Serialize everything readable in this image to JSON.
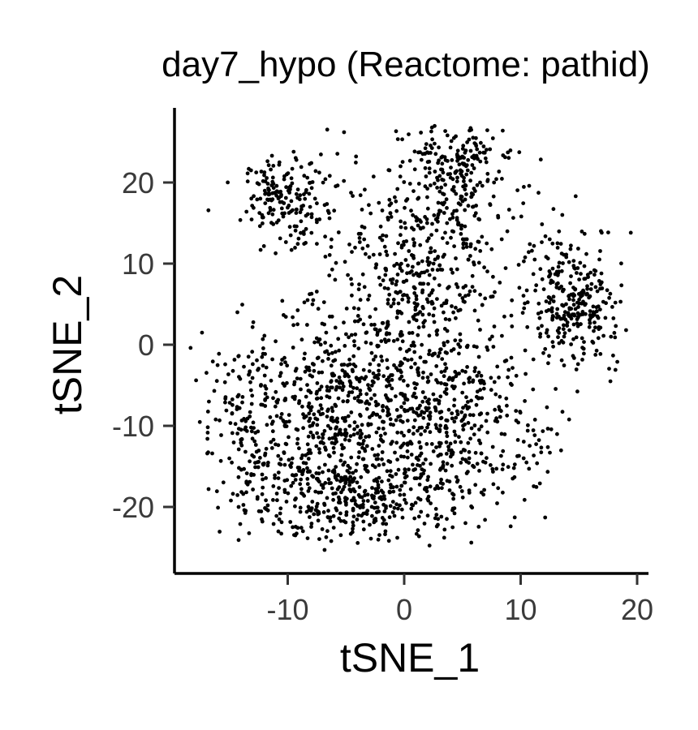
{
  "chart_data": {
    "type": "scatter",
    "title": "day7_hypo (Reactome: pathid)",
    "xlabel": "tSNE_1",
    "ylabel": "tSNE_2",
    "xlim": [
      -19.5,
      20.5
    ],
    "ylim": [
      -28.5,
      29
    ],
    "xticks": [
      -10,
      0,
      10,
      20
    ],
    "yticks": [
      -20,
      -10,
      0,
      10,
      20
    ],
    "xtick_labels": [
      "-10",
      "0",
      "10",
      "20"
    ],
    "ytick_labels": [
      "-20",
      "-10",
      "0",
      "10",
      "20"
    ],
    "grid": false,
    "legend": "none",
    "point_color": "#000000",
    "n_points_approx": 2400,
    "point_density_regions": [
      {
        "region": "upper-left cluster",
        "x_range": [
          -13,
          -4
        ],
        "y_range": [
          10,
          23.5
        ],
        "density": "medium"
      },
      {
        "region": "upper-center cluster",
        "x_range": [
          -5,
          9
        ],
        "y_range": [
          2,
          26.5
        ],
        "density": "high"
      },
      {
        "region": "right cluster",
        "x_range": [
          10,
          19
        ],
        "y_range": [
          -3,
          18.5
        ],
        "density": "high"
      },
      {
        "region": "main lower cluster",
        "x_range": [
          -18,
          11
        ],
        "y_range": [
          -25.5,
          3
        ],
        "density": "very high"
      },
      {
        "region": "lower-right tail",
        "x_range": [
          10,
          13
        ],
        "y_range": [
          -16,
          -9
        ],
        "density": "low"
      }
    ]
  }
}
